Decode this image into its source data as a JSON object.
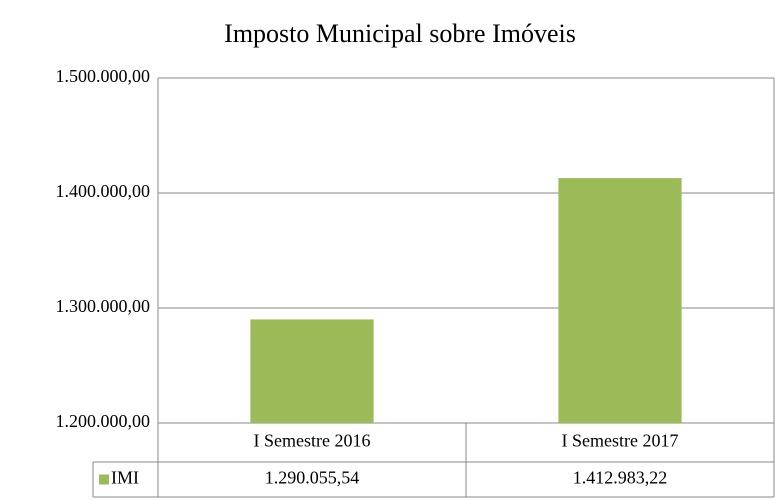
{
  "chart_data": {
    "type": "bar",
    "title": "Imposto Municipal sobre Imóveis",
    "categories": [
      "I Semestre 2016",
      "I Semestre 2017"
    ],
    "series": [
      {
        "name": "IMI",
        "color": "#9bbb59",
        "values": [
          1290055.54,
          1412983.22
        ],
        "value_labels": [
          "1.290.055,54",
          "1.412.983,22"
        ]
      }
    ],
    "ylim": [
      1200000,
      1500000
    ],
    "yticks": [
      {
        "value": 1200000,
        "label": "1.200.000,00"
      },
      {
        "value": 1300000,
        "label": "1.300.000,00"
      },
      {
        "value": 1400000,
        "label": "1.400.000,00"
      },
      {
        "value": 1500000,
        "label": "1.500.000,00"
      }
    ],
    "grid": true,
    "data_table": true
  }
}
